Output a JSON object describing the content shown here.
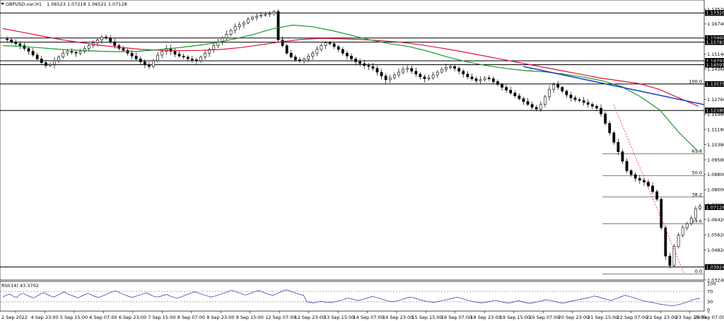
{
  "header": {
    "symbol": "GBPUSD.var,H1",
    "ohlc": "1.06523 1.07218 1.06521 1.07128"
  },
  "rsi": {
    "label": "RSI(14) 43.3702",
    "levels": [
      "100",
      "70",
      "30",
      "0"
    ],
    "values": [
      48,
      55,
      60,
      52,
      46,
      58,
      63,
      55,
      50,
      45,
      52,
      60,
      65,
      58,
      52,
      48,
      55,
      62,
      68,
      60,
      55,
      50,
      45,
      52,
      58,
      62,
      56,
      50,
      47,
      52,
      57,
      63,
      68,
      72,
      66,
      60,
      55,
      50,
      47,
      52,
      56,
      60,
      64,
      58,
      52,
      48,
      50,
      55,
      58,
      52,
      47,
      44,
      48,
      53,
      58,
      63,
      68,
      65,
      60,
      56,
      52,
      48,
      52,
      56,
      60,
      64,
      70,
      74,
      70,
      65,
      60,
      56,
      60,
      65,
      70,
      73,
      68,
      62,
      58,
      55,
      60,
      66,
      72,
      76,
      72,
      67,
      62,
      58,
      55,
      30,
      28,
      26,
      29,
      32,
      30,
      28,
      27,
      30,
      33,
      36,
      40,
      44,
      42,
      38,
      35,
      38,
      42,
      46,
      50,
      48,
      44,
      40,
      36,
      32,
      30,
      33,
      36,
      40,
      44,
      48,
      46,
      42,
      38,
      35,
      32,
      30,
      28,
      30,
      33,
      36,
      38,
      42,
      45,
      48,
      44,
      40,
      36,
      33,
      30,
      28,
      26,
      28,
      30,
      33,
      36,
      33,
      30,
      27,
      25,
      28,
      31,
      34,
      30,
      27,
      24,
      26,
      29,
      32,
      35,
      38,
      36,
      33,
      30,
      27,
      25,
      28,
      31,
      34,
      37,
      40,
      42,
      45,
      48,
      52,
      50,
      46,
      42,
      38,
      35,
      40,
      45,
      50,
      55,
      52,
      48,
      44,
      40,
      36,
      32,
      30,
      28,
      25,
      22,
      20,
      18,
      16,
      15,
      17,
      20,
      24,
      28,
      33,
      38,
      42,
      43
    ]
  },
  "chart_data": {
    "type": "candlestick",
    "price_axis_ticks": [
      "1.17520",
      "1.16740",
      "1.15960",
      "1.15140",
      "1.14360",
      "1.13560",
      "1.12760",
      "1.11980",
      "1.11180",
      "1.10380",
      "1.09580",
      "1.08800",
      "1.08000",
      "1.07200",
      "1.06420",
      "1.05620",
      "1.04820",
      "1.04000",
      "1.03240"
    ],
    "horizontal_levels": [
      "1.17320",
      "1.15999",
      "1.15783",
      "1.14797",
      "1.14591",
      "1.13575",
      "1.12180",
      "1.03924"
    ],
    "current_price": "1.07128",
    "fib_levels": [
      "100.0",
      "61.8",
      "50.0",
      "38.2",
      "23.6",
      "0.0"
    ],
    "time_axis": [
      "2 Sep 2022",
      "4 Sep 23:00",
      "5 Sep 15:00",
      "6 Sep 07:00",
      "6 Sep 23:00",
      "7 Sep 15:00",
      "8 Sep 07:00",
      "8 Sep 23:00",
      "9 Sep 15:00",
      "12 Sep 07:00",
      "12 Sep 23:00",
      "13 Sep 15:00",
      "14 Sep 07:00",
      "14 Sep 23:00",
      "15 Sep 15:00",
      "16 Sep 07:00",
      "18 Sep 23:00",
      "19 Sep 15:00",
      "20 Sep 07:00",
      "20 Sep 23:00",
      "21 Sep 15:00",
      "22 Sep 07:00",
      "22 Sep 23:00",
      "23 Sep 15:00",
      "26 Sep 07:00"
    ],
    "close_series": [
      1.1595,
      1.159,
      1.158,
      1.157,
      1.156,
      1.1545,
      1.153,
      1.151,
      1.149,
      1.147,
      1.1455,
      1.146,
      1.148,
      1.15,
      1.152,
      1.153,
      1.1525,
      1.152,
      1.153,
      1.1545,
      1.156,
      1.1575,
      1.159,
      1.1605,
      1.16,
      1.158,
      1.156,
      1.1545,
      1.1535,
      1.152,
      1.1505,
      1.149,
      1.1475,
      1.146,
      1.145,
      1.148,
      1.151,
      1.153,
      1.1545,
      1.153,
      1.1515,
      1.1505,
      1.15,
      1.149,
      1.1485,
      1.148,
      1.15,
      1.152,
      1.154,
      1.156,
      1.158,
      1.16,
      1.162,
      1.164,
      1.166,
      1.167,
      1.168,
      1.17,
      1.171,
      1.1715,
      1.172,
      1.1725,
      1.173,
      1.174,
      1.159,
      1.156,
      1.152,
      1.15,
      1.1485,
      1.148,
      1.149,
      1.1505,
      1.152,
      1.154,
      1.156,
      1.1575,
      1.157,
      1.1555,
      1.154,
      1.152,
      1.1505,
      1.149,
      1.1475,
      1.1465,
      1.1455,
      1.145,
      1.144,
      1.142,
      1.14,
      1.138,
      1.139,
      1.1405,
      1.142,
      1.1435,
      1.144,
      1.1425,
      1.141,
      1.1395,
      1.1385,
      1.139,
      1.1405,
      1.142,
      1.1435,
      1.1445,
      1.145,
      1.144,
      1.1425,
      1.141,
      1.1395,
      1.1385,
      1.1375,
      1.138,
      1.139,
      1.1385,
      1.137,
      1.1355,
      1.134,
      1.1325,
      1.131,
      1.1295,
      1.128,
      1.1265,
      1.125,
      1.1235,
      1.1225,
      1.125,
      1.129,
      1.133,
      1.1355,
      1.134,
      1.132,
      1.13,
      1.1285,
      1.1275,
      1.127,
      1.126,
      1.125,
      1.124,
      1.123,
      1.12,
      1.115,
      1.11,
      1.105,
      1.1,
      1.095,
      1.09,
      1.088,
      1.086,
      1.085,
      1.084,
      1.082,
      1.079,
      1.075,
      1.06,
      1.045,
      1.04,
      1.05,
      1.056,
      1.06,
      1.062,
      1.065,
      1.07,
      1.0713
    ],
    "ma_green": [
      1.156,
      1.1555,
      1.1548,
      1.154,
      1.1535,
      1.153,
      1.1528,
      1.153,
      1.1538,
      1.1548,
      1.156,
      1.1575,
      1.1595,
      1.162,
      1.165,
      1.1668,
      1.166,
      1.164,
      1.1615,
      1.159,
      1.157,
      1.1555,
      1.153,
      1.15,
      1.1475,
      1.1455,
      1.144,
      1.1428,
      1.1422,
      1.141,
      1.1395,
      1.1375,
      1.1345,
      1.129,
      1.122,
      1.11,
      1.1
    ],
    "ma_red": [
      1.165,
      1.163,
      1.161,
      1.159,
      1.1575,
      1.156,
      1.155,
      1.154,
      1.1535,
      1.1533,
      1.1535,
      1.154,
      1.155,
      1.1565,
      1.158,
      1.1592,
      1.1598,
      1.1596,
      1.1592,
      1.1586,
      1.1578,
      1.1565,
      1.1548,
      1.153,
      1.151,
      1.149,
      1.147,
      1.145,
      1.143,
      1.141,
      1.139,
      1.1375,
      1.136,
      1.133,
      1.1285,
      1.124
    ]
  },
  "colors": {
    "candle": "#000000",
    "ma_green": "#1a9a2a",
    "ma_red": "#dc1438",
    "trend_blue": "#1f3fcc",
    "fib_dashed": "#e0302a",
    "current_price_bg": "#000000"
  }
}
